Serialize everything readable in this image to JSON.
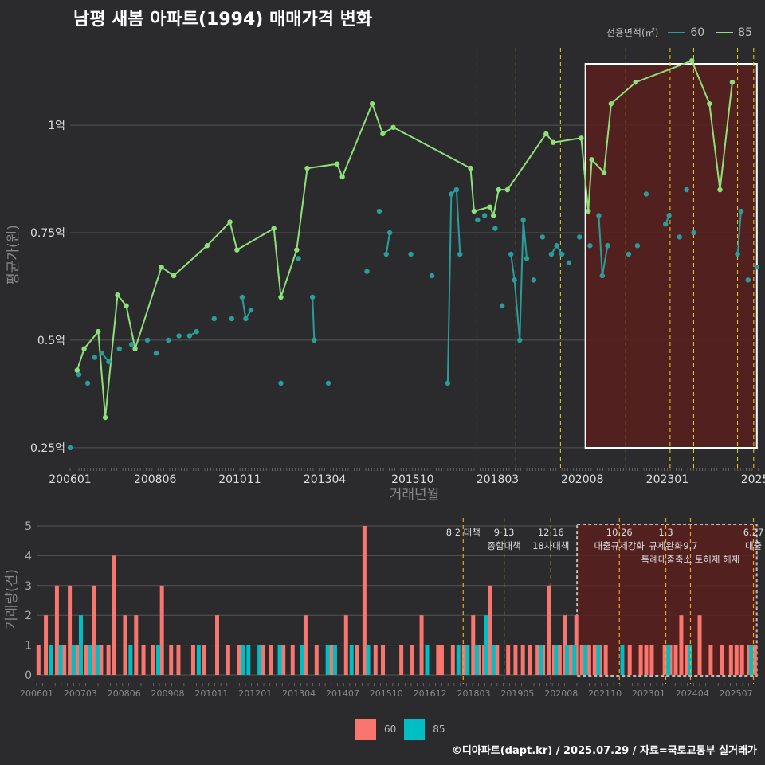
{
  "title": "남평 새봄 아파트(1994) 매매가격 변화",
  "legend_top": {
    "title": "전용면적(㎡)",
    "items": [
      {
        "name": "60",
        "color": "#2a9d9a"
      },
      {
        "name": "85",
        "color": "#8ee07a"
      }
    ]
  },
  "legend_bottom": {
    "items": [
      {
        "name": "60",
        "color": "#f8766d"
      },
      {
        "name": "85",
        "color": "#00bfc4"
      }
    ]
  },
  "footer": "©디아파트(dapt.kr) / 2025.07.29 / 자료=국토교통부 실거래가",
  "chart_data": [
    {
      "type": "line",
      "ylabel": "평균가(원)",
      "xlabel": "거래년월",
      "x_tick_labels": [
        "200601",
        "200806",
        "201011",
        "201304",
        "201510",
        "201803",
        "202008",
        "202301",
        "2025"
      ],
      "y_tick_labels": [
        "0.25억",
        "0.5억",
        "0.75억",
        "1억"
      ],
      "y_ticks": [
        0.25,
        0.5,
        0.75,
        1.0
      ],
      "ylim": [
        0.22,
        1.18
      ],
      "xlim": [
        2006.0,
        2025.6
      ],
      "highlight_x": [
        2020.67,
        2025.55
      ],
      "policy_lines_x": [
        2017.58,
        2018.69,
        2019.96,
        2021.82,
        2023.08,
        2023.75,
        2025.0,
        2025.46
      ],
      "series": [
        {
          "name": "85",
          "values": [
            [
              2006.2,
              0.43
            ],
            [
              2006.4,
              0.48
            ],
            [
              2006.8,
              0.52
            ],
            [
              2007.0,
              0.32
            ],
            [
              2007.35,
              0.605
            ],
            [
              2007.6,
              0.58
            ],
            [
              2007.85,
              0.48
            ],
            [
              2008.6,
              0.67
            ],
            [
              2008.95,
              0.65
            ],
            [
              2009.9,
              0.72
            ],
            [
              2010.55,
              0.775
            ],
            [
              2010.75,
              0.71
            ],
            [
              2011.8,
              0.76
            ],
            [
              2012.0,
              0.6
            ],
            [
              2012.45,
              0.71
            ],
            [
              2012.75,
              0.9
            ],
            [
              2013.6,
              0.91
            ],
            [
              2013.75,
              0.88
            ],
            [
              2014.6,
              1.05
            ],
            [
              2014.9,
              0.98
            ],
            [
              2015.2,
              0.995
            ],
            [
              2017.4,
              0.9
            ],
            [
              2017.5,
              0.8
            ],
            [
              2017.95,
              0.81
            ],
            [
              2018.05,
              0.79
            ],
            [
              2018.2,
              0.85
            ],
            [
              2018.45,
              0.85
            ],
            [
              2019.55,
              0.98
            ],
            [
              2019.75,
              0.96
            ],
            [
              2020.55,
              0.97
            ],
            [
              2020.75,
              0.8
            ],
            [
              2020.85,
              0.92
            ],
            [
              2021.2,
              0.89
            ],
            [
              2021.4,
              1.05
            ],
            [
              2022.1,
              1.1
            ],
            [
              2023.7,
              1.15
            ],
            [
              2024.2,
              1.05
            ],
            [
              2024.5,
              0.85
            ],
            [
              2024.85,
              1.1
            ]
          ]
        },
        {
          "name": "60",
          "values": [
            [
              2006.0,
              0.25
            ],
            [
              2006.25,
              0.42
            ],
            [
              2006.5,
              0.4
            ],
            [
              2006.7,
              0.46
            ],
            [
              2006.9,
              0.47
            ],
            [
              2007.1,
              0.45
            ],
            [
              2007.4,
              0.48
            ],
            [
              2007.75,
              0.49
            ],
            [
              2008.2,
              0.5
            ],
            [
              2008.45,
              0.47
            ],
            [
              2008.8,
              0.5
            ],
            [
              2009.1,
              0.51
            ],
            [
              2009.4,
              0.51
            ],
            [
              2009.6,
              0.52
            ],
            [
              2010.1,
              0.55
            ],
            [
              2010.6,
              0.55
            ],
            [
              2010.9,
              0.6
            ],
            [
              2011.0,
              0.55
            ],
            [
              2011.15,
              0.57
            ],
            [
              2012.0,
              0.4
            ],
            [
              2012.5,
              0.69
            ],
            [
              2012.9,
              0.6
            ],
            [
              2012.95,
              0.5
            ],
            [
              2013.35,
              0.4
            ],
            [
              2014.45,
              0.66
            ],
            [
              2014.8,
              0.8
            ],
            [
              2015.0,
              0.7
            ],
            [
              2015.1,
              0.75
            ],
            [
              2015.7,
              0.7
            ],
            [
              2016.3,
              0.65
            ],
            [
              2016.75,
              0.4
            ],
            [
              2016.85,
              0.84
            ],
            [
              2017.0,
              0.85
            ],
            [
              2017.1,
              0.7
            ],
            [
              2017.6,
              0.78
            ],
            [
              2017.8,
              0.79
            ],
            [
              2018.1,
              0.76
            ],
            [
              2018.3,
              0.58
            ],
            [
              2018.55,
              0.7
            ],
            [
              2018.65,
              0.64
            ],
            [
              2018.8,
              0.5
            ],
            [
              2018.9,
              0.78
            ],
            [
              2019.0,
              0.69
            ],
            [
              2019.2,
              0.64
            ],
            [
              2019.45,
              0.74
            ],
            [
              2019.7,
              0.7
            ],
            [
              2019.85,
              0.72
            ],
            [
              2020.0,
              0.7
            ],
            [
              2020.2,
              0.68
            ],
            [
              2020.5,
              0.74
            ],
            [
              2020.8,
              0.72
            ],
            [
              2021.05,
              0.79
            ],
            [
              2021.15,
              0.65
            ],
            [
              2021.3,
              0.72
            ],
            [
              2021.9,
              0.7
            ],
            [
              2022.15,
              0.72
            ],
            [
              2022.4,
              0.84
            ],
            [
              2022.95,
              0.77
            ],
            [
              2023.05,
              0.79
            ],
            [
              2023.35,
              0.74
            ],
            [
              2023.55,
              0.85
            ],
            [
              2023.75,
              0.75
            ],
            [
              2025.0,
              0.7
            ],
            [
              2025.1,
              0.8
            ],
            [
              2025.3,
              0.64
            ],
            [
              2025.55,
              0.67
            ]
          ]
        }
      ]
    },
    {
      "type": "bar",
      "ylabel": "거래량(건)",
      "x_tick_labels": [
        "200601",
        "200703",
        "200806",
        "200908",
        "201011",
        "201201",
        "201304",
        "201407",
        "201510",
        "201612",
        "201803",
        "201905",
        "202008",
        "202110",
        "202301",
        "202404",
        "202507"
      ],
      "y_tick_labels": [
        "0",
        "1",
        "2",
        "3",
        "4",
        "5"
      ],
      "ylim": [
        0,
        5
      ],
      "xlim": [
        2006.0,
        2025.6
      ],
      "highlight_x": [
        2020.67,
        2025.55
      ],
      "annotations": [
        {
          "x": 2017.58,
          "lines": [
            "8·2 대책"
          ]
        },
        {
          "x": 2018.69,
          "lines": [
            "9·13",
            "종합대책"
          ]
        },
        {
          "x": 2019.96,
          "lines": [
            "12·16",
            "18차대책"
          ]
        },
        {
          "x": 2021.82,
          "lines": [
            "10.26",
            "대출규제강화"
          ]
        },
        {
          "x": 2023.08,
          "lines": [
            "1.3",
            "규제완화"
          ]
        },
        {
          "x": 2023.75,
          "lines": [
            "",
            "9.7",
            "특례대출축소 토허제 해제"
          ]
        },
        {
          "x": 2025.46,
          "lines": [
            "6.27",
            "대출"
          ]
        }
      ],
      "series": [
        {
          "name": "60",
          "values": [
            [
              2006.05,
              1
            ],
            [
              2006.25,
              2
            ],
            [
              2006.55,
              3
            ],
            [
              2006.75,
              1
            ],
            [
              2006.9,
              3
            ],
            [
              2007.1,
              1
            ],
            [
              2007.35,
              1
            ],
            [
              2007.55,
              3
            ],
            [
              2007.75,
              1
            ],
            [
              2007.95,
              1
            ],
            [
              2008.1,
              4
            ],
            [
              2008.4,
              2
            ],
            [
              2008.7,
              2
            ],
            [
              2008.9,
              1
            ],
            [
              2009.15,
              1
            ],
            [
              2009.4,
              3
            ],
            [
              2009.65,
              1
            ],
            [
              2009.85,
              1
            ],
            [
              2010.25,
              1
            ],
            [
              2010.55,
              1
            ],
            [
              2010.9,
              2
            ],
            [
              2011.2,
              1
            ],
            [
              2011.5,
              1
            ],
            [
              2012.15,
              1
            ],
            [
              2012.35,
              1
            ],
            [
              2012.7,
              1
            ],
            [
              2012.95,
              1
            ],
            [
              2013.3,
              2
            ],
            [
              2013.6,
              1
            ],
            [
              2014.0,
              1
            ],
            [
              2014.4,
              2
            ],
            [
              2014.7,
              1
            ],
            [
              2014.9,
              5
            ],
            [
              2015.2,
              1
            ],
            [
              2015.4,
              1
            ],
            [
              2015.9,
              1
            ],
            [
              2016.2,
              1
            ],
            [
              2016.45,
              2
            ],
            [
              2016.9,
              1
            ],
            [
              2017.0,
              1
            ],
            [
              2017.3,
              1
            ],
            [
              2017.6,
              1
            ],
            [
              2017.85,
              2
            ],
            [
              2018.0,
              1
            ],
            [
              2018.15,
              1
            ],
            [
              2018.3,
              3
            ],
            [
              2018.5,
              1
            ],
            [
              2018.8,
              1
            ],
            [
              2019.0,
              1
            ],
            [
              2019.2,
              1
            ],
            [
              2019.4,
              1
            ],
            [
              2019.6,
              1
            ],
            [
              2019.75,
              1
            ],
            [
              2019.9,
              3
            ],
            [
              2020.05,
              1
            ],
            [
              2020.2,
              1
            ],
            [
              2020.35,
              2
            ],
            [
              2020.5,
              1
            ],
            [
              2020.65,
              2
            ],
            [
              2020.8,
              1
            ],
            [
              2021.0,
              1
            ],
            [
              2021.15,
              1
            ],
            [
              2021.3,
              1
            ],
            [
              2021.45,
              1
            ],
            [
              2022.1,
              1
            ],
            [
              2022.4,
              1
            ],
            [
              2022.55,
              1
            ],
            [
              2022.7,
              1
            ],
            [
              2023.05,
              1
            ],
            [
              2023.2,
              1
            ],
            [
              2023.35,
              1
            ],
            [
              2023.5,
              2
            ],
            [
              2023.65,
              1
            ],
            [
              2024.0,
              2
            ],
            [
              2024.3,
              1
            ],
            [
              2024.6,
              1
            ],
            [
              2024.85,
              1
            ],
            [
              2025.0,
              1
            ],
            [
              2025.15,
              1
            ],
            [
              2025.35,
              1
            ],
            [
              2025.5,
              1
            ]
          ]
        },
        {
          "name": "85",
          "values": [
            [
              2006.4,
              1
            ],
            [
              2006.65,
              1
            ],
            [
              2007.0,
              1
            ],
            [
              2007.2,
              2
            ],
            [
              2007.45,
              1
            ],
            [
              2007.65,
              1
            ],
            [
              2008.55,
              1
            ],
            [
              2009.3,
              1
            ],
            [
              2010.4,
              1
            ],
            [
              2011.6,
              1
            ],
            [
              2011.75,
              1
            ],
            [
              2012.05,
              1
            ],
            [
              2012.6,
              1
            ],
            [
              2013.2,
              1
            ],
            [
              2013.9,
              1
            ],
            [
              2014.1,
              1
            ],
            [
              2014.55,
              1
            ],
            [
              2015.0,
              1
            ],
            [
              2016.6,
              1
            ],
            [
              2017.7,
              1
            ],
            [
              2017.45,
              1
            ],
            [
              2017.95,
              1
            ],
            [
              2018.2,
              2
            ],
            [
              2018.4,
              1
            ],
            [
              2019.7,
              1
            ],
            [
              2020.1,
              1
            ],
            [
              2020.4,
              1
            ],
            [
              2020.6,
              1
            ],
            [
              2020.9,
              1
            ],
            [
              2021.25,
              1
            ],
            [
              2021.9,
              1
            ],
            [
              2023.15,
              1
            ],
            [
              2023.75,
              1
            ],
            [
              2025.4,
              1
            ]
          ]
        }
      ]
    }
  ]
}
